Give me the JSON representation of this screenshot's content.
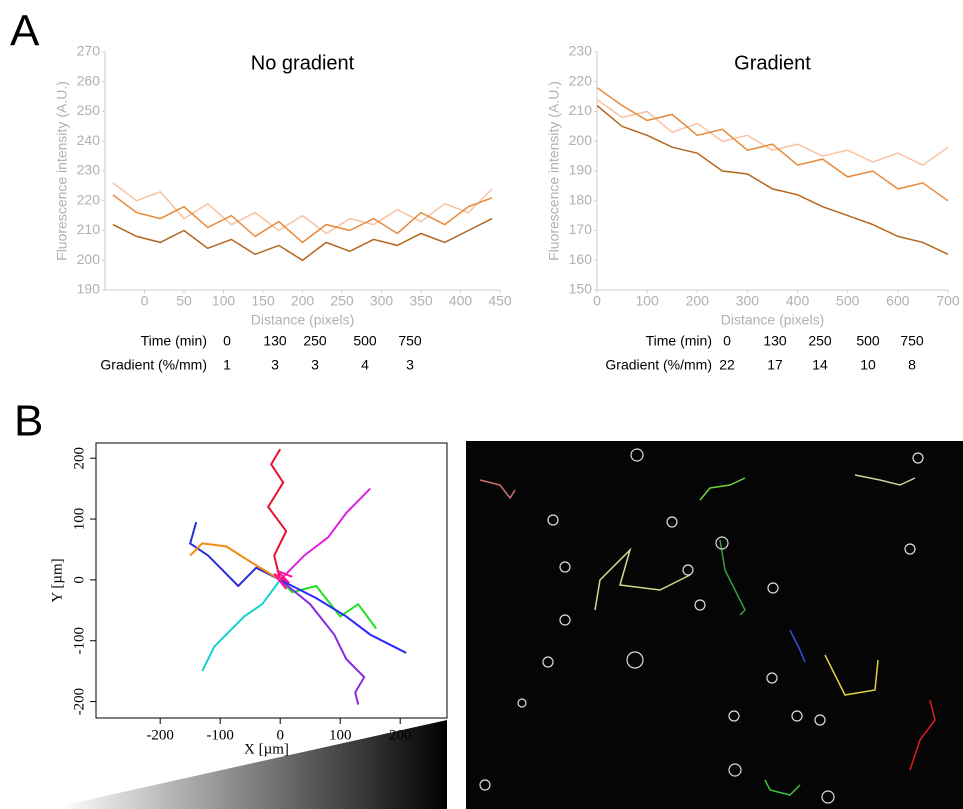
{
  "panels": [
    "A",
    "B"
  ],
  "chart_data": [
    {
      "type": "line",
      "title": "No gradient",
      "x_label": "Distance (pixels)",
      "y_label": "Fluorescence intensity (A.U.)",
      "x": [
        -40,
        -10,
        20,
        50,
        80,
        110,
        140,
        170,
        200,
        230,
        260,
        290,
        320,
        350,
        380,
        410,
        440
      ],
      "series": [
        {
          "color": "#f7c3a3",
          "values": [
            226,
            220,
            223,
            214,
            219,
            212,
            216,
            210,
            215,
            209,
            214,
            212,
            217,
            213,
            219,
            216,
            224
          ]
        },
        {
          "color": "#e8893a",
          "values": [
            222,
            216,
            214,
            218,
            211,
            215,
            208,
            213,
            206,
            212,
            210,
            214,
            209,
            216,
            212,
            218,
            221
          ]
        },
        {
          "color": "#b5651d",
          "values": [
            212,
            208,
            206,
            210,
            204,
            207,
            202,
            205,
            200,
            206,
            203,
            207,
            205,
            209,
            206,
            210,
            214
          ]
        }
      ],
      "xlim": [
        -50,
        450
      ],
      "xticks": [
        0,
        50,
        100,
        150,
        200,
        250,
        300,
        350,
        400,
        450
      ],
      "ylim": [
        190,
        270
      ],
      "yticks": [
        190,
        200,
        210,
        220,
        230,
        240,
        250,
        260,
        270
      ]
    },
    {
      "type": "line",
      "title": "Gradient",
      "x_label": "Distance (pixels)",
      "y_label": "Fluorescence intensity (A.U.)",
      "x": [
        0,
        50,
        100,
        150,
        200,
        250,
        300,
        350,
        400,
        450,
        500,
        550,
        600,
        650,
        700
      ],
      "series": [
        {
          "color": "#f7c3a3",
          "values": [
            214,
            208,
            210,
            203,
            206,
            200,
            202,
            197,
            199,
            195,
            197,
            193,
            196,
            192,
            198
          ]
        },
        {
          "color": "#e8893a",
          "values": [
            218,
            212,
            207,
            209,
            202,
            204,
            197,
            199,
            192,
            194,
            188,
            190,
            184,
            186,
            180
          ]
        },
        {
          "color": "#b5651d",
          "values": [
            212,
            205,
            202,
            198,
            196,
            190,
            189,
            184,
            182,
            178,
            175,
            172,
            168,
            166,
            162
          ]
        }
      ],
      "xlim": [
        0,
        700
      ],
      "xticks": [
        0,
        100,
        200,
        300,
        400,
        500,
        600,
        700
      ],
      "ylim": [
        150,
        230
      ],
      "yticks": [
        150,
        160,
        170,
        180,
        190,
        200,
        210,
        220,
        230
      ]
    },
    {
      "type": "line",
      "x_label": "X [µm]",
      "y_label": "Y [µm]",
      "frame": true,
      "series": [
        {
          "color": "#2b2bd8",
          "x": [
            0,
            -40,
            -70,
            -120,
            -150,
            -140
          ],
          "values": [
            0,
            20,
            -10,
            40,
            60,
            95
          ]
        },
        {
          "color": "#22e022",
          "x": [
            0,
            20,
            60,
            100,
            130,
            160
          ],
          "values": [
            0,
            -20,
            -10,
            -60,
            -40,
            -80
          ]
        },
        {
          "color": "#19d0d0",
          "x": [
            0,
            -30,
            -60,
            -90,
            -110,
            -130
          ],
          "values": [
            0,
            -40,
            -60,
            -90,
            -110,
            -150
          ]
        },
        {
          "color": "#e020e0",
          "x": [
            0,
            40,
            80,
            110,
            130,
            150
          ],
          "values": [
            0,
            40,
            70,
            110,
            130,
            150
          ]
        },
        {
          "color": "#8a2be2",
          "x": [
            0,
            50,
            90,
            110,
            140,
            125,
            130
          ],
          "values": [
            0,
            -40,
            -90,
            -130,
            -160,
            -185,
            -205
          ]
        },
        {
          "color": "#e8112d",
          "x": [
            0,
            -10,
            10,
            -20,
            5,
            -15,
            0
          ],
          "values": [
            0,
            40,
            80,
            120,
            160,
            190,
            215
          ]
        },
        {
          "color": "#f08c10",
          "x": [
            0,
            -50,
            -90,
            -130,
            -150
          ],
          "values": [
            0,
            30,
            55,
            60,
            40
          ]
        },
        {
          "color": "#2a2aff",
          "x": [
            0,
            60,
            110,
            150,
            190,
            210
          ],
          "values": [
            0,
            -30,
            -60,
            -90,
            -110,
            -120
          ]
        },
        {
          "color": "#ff1493",
          "x": [
            0,
            10,
            -10,
            15,
            -5,
            20
          ],
          "values": [
            0,
            -15,
            10,
            -5,
            15,
            5
          ]
        }
      ],
      "xlim": [
        -307,
        278
      ],
      "xticks": [
        -200,
        -100,
        0,
        100,
        200
      ],
      "ylim": [
        -227,
        225
      ],
      "yticks": [
        -200,
        -100,
        0,
        100,
        200
      ]
    }
  ],
  "tables": [
    {
      "rows": [
        {
          "label": "Time (min)",
          "values": [
            0,
            130,
            250,
            500,
            750
          ]
        },
        {
          "label": "Gradient (%/mm)",
          "values": [
            1,
            3,
            3,
            4,
            3
          ]
        }
      ]
    },
    {
      "rows": [
        {
          "label": "Time (min)",
          "values": [
            0,
            130,
            250,
            500,
            750
          ]
        },
        {
          "label": "Gradient (%/mm)",
          "values": [
            22,
            17,
            14,
            10,
            8
          ]
        }
      ]
    }
  ]
}
